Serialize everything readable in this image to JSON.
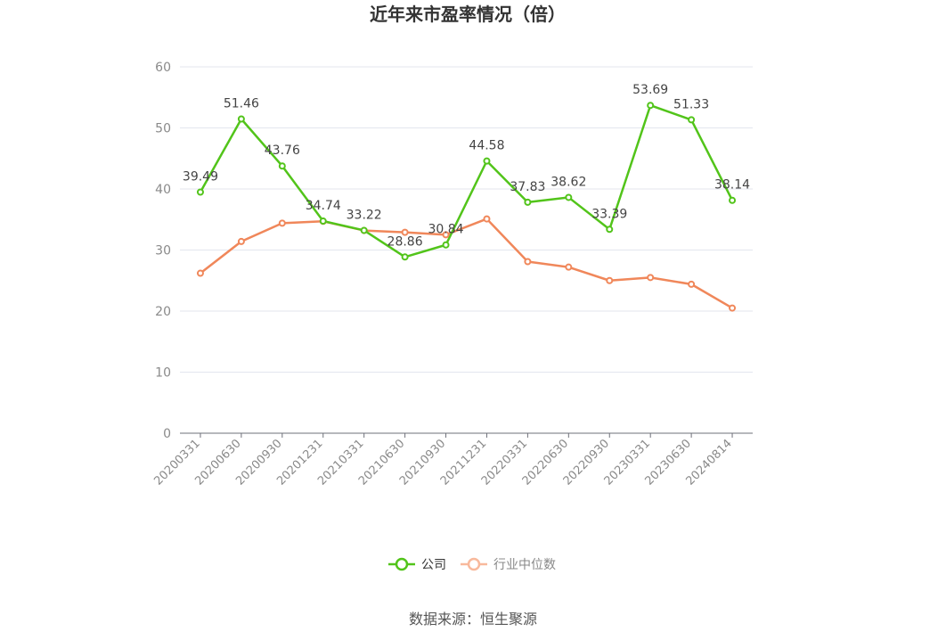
{
  "chart_data": {
    "type": "line",
    "title": "近年来市盈率情况（倍）",
    "categories": [
      "20200331",
      "20200630",
      "20200930",
      "20201231",
      "20210331",
      "20210630",
      "20210930",
      "20211231",
      "20220331",
      "20220630",
      "20220930",
      "20230331",
      "20230630",
      "20240814"
    ],
    "ylim": [
      0,
      60
    ],
    "yticks": [
      0,
      10,
      20,
      30,
      40,
      50,
      60
    ],
    "grid": true,
    "legend_position": "bottom",
    "series": [
      {
        "name": "公司",
        "color": "#52c41a",
        "values": [
          39.49,
          51.46,
          43.76,
          34.74,
          33.22,
          28.86,
          30.84,
          44.58,
          37.83,
          38.62,
          33.39,
          53.69,
          51.33,
          38.14
        ],
        "labels": [
          "39.49",
          "51.46",
          "43.76",
          "34.74",
          "33.22",
          "28.86",
          "30.84",
          "44.58",
          "37.83",
          "38.62",
          "33.39",
          "53.69",
          "51.33",
          "38.14"
        ]
      },
      {
        "name": "行业中位数",
        "color": "#f0875a",
        "values": [
          26.2,
          31.4,
          34.4,
          34.7,
          33.2,
          32.9,
          32.5,
          35.1,
          28.1,
          27.2,
          25.0,
          25.5,
          24.4,
          20.5
        ]
      }
    ]
  },
  "source_text": "数据来源：恒生聚源",
  "legend_icon_off_color": "#f8b99c"
}
